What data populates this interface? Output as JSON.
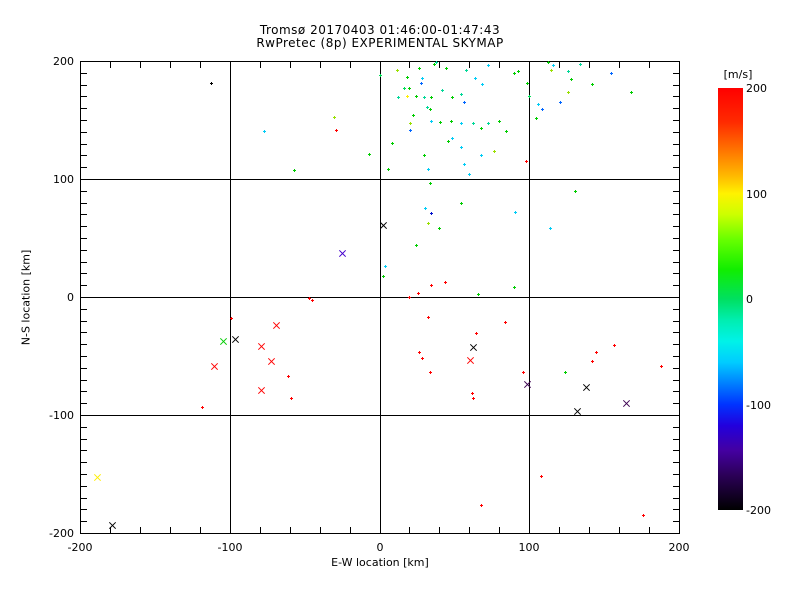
{
  "chart_data": {
    "type": "scatter",
    "title": "Tromsø 20170403 01:46:00-01:47:43",
    "subtitle": "RwPretec (8p) EXPERIMENTAL SKYMAP",
    "xlabel": "E-W location [km]",
    "ylabel": "N-S location [km]",
    "xlim": [
      -200,
      200
    ],
    "ylim": [
      -200,
      200
    ],
    "x_major_ticks": [
      -200,
      -100,
      0,
      100,
      200
    ],
    "y_major_ticks": [
      -200,
      -100,
      0,
      100,
      200
    ],
    "x_minor_step": 20,
    "y_minor_step": 10,
    "grid": true,
    "grid_values": [
      -100,
      0,
      100
    ],
    "marker_legend": {
      "d": "small plus dot",
      "x": "cross marker"
    },
    "colorbar": {
      "label": "[m/s]",
      "ticks": [
        200,
        100,
        0,
        -100,
        -200
      ],
      "range": [
        -200,
        200
      ],
      "stops": [
        [
          0.0,
          "#ff0000"
        ],
        [
          0.08,
          "#ff2a00"
        ],
        [
          0.15,
          "#ff7700"
        ],
        [
          0.21,
          "#ffbb00"
        ],
        [
          0.25,
          "#fff200"
        ],
        [
          0.3,
          "#ccff00"
        ],
        [
          0.36,
          "#66ff00"
        ],
        [
          0.43,
          "#11ee00"
        ],
        [
          0.5,
          "#00e060"
        ],
        [
          0.55,
          "#00eeb0"
        ],
        [
          0.6,
          "#00f2e8"
        ],
        [
          0.65,
          "#00ccff"
        ],
        [
          0.7,
          "#0080ff"
        ],
        [
          0.75,
          "#0033ff"
        ],
        [
          0.8,
          "#2200dd"
        ],
        [
          0.86,
          "#4400a0"
        ],
        [
          0.92,
          "#2a0055"
        ],
        [
          1.0,
          "#000000"
        ]
      ]
    },
    "palette": {
      "red": {
        "hex": "#ff0000",
        "v": 200
      },
      "yellow": {
        "hex": "#ffee00",
        "v": 105
      },
      "yellowgreen": {
        "hex": "#99e000",
        "v": 85
      },
      "green": {
        "hex": "#00cc00",
        "v": 45
      },
      "springgreen": {
        "hex": "#00dd55",
        "v": 15
      },
      "teal": {
        "hex": "#00d898",
        "v": -15
      },
      "cyan": {
        "hex": "#00ccf5",
        "v": -55
      },
      "blue": {
        "hex": "#0066ff",
        "v": -95
      },
      "darkblue": {
        "hex": "#0011cc",
        "v": -135
      },
      "indigo": {
        "hex": "#4400cc",
        "v": -150
      },
      "darkpurple": {
        "hex": "#3c0050",
        "v": -175
      },
      "black": {
        "hex": "#000000",
        "v": -200
      }
    },
    "points": [
      [
        -112,
        181,
        "black",
        "d"
      ],
      [
        -77,
        140,
        "cyan",
        "d"
      ],
      [
        -30,
        152,
        "yellowgreen",
        "d"
      ],
      [
        -29,
        141,
        "red",
        "d"
      ],
      [
        -7,
        121,
        "green",
        "d"
      ],
      [
        -57,
        107,
        "green",
        "d"
      ],
      [
        -25,
        37,
        "indigo",
        "x"
      ],
      [
        -47,
        -1,
        "red",
        "d"
      ],
      [
        1,
        188,
        "springgreen",
        "d"
      ],
      [
        12,
        192,
        "yellowgreen",
        "d"
      ],
      [
        27,
        194,
        "green",
        "d"
      ],
      [
        37,
        197,
        "green",
        "d"
      ],
      [
        38,
        199,
        "teal",
        "d"
      ],
      [
        45,
        194,
        "green",
        "d"
      ],
      [
        58,
        192,
        "teal",
        "d"
      ],
      [
        73,
        196,
        "cyan",
        "d"
      ],
      [
        93,
        191,
        "green",
        "d"
      ],
      [
        19,
        186,
        "green",
        "d"
      ],
      [
        29,
        185,
        "cyan",
        "d"
      ],
      [
        28,
        181,
        "blue",
        "d"
      ],
      [
        90,
        189,
        "green",
        "d"
      ],
      [
        99,
        181,
        "green",
        "d"
      ],
      [
        64,
        185,
        "cyan",
        "d"
      ],
      [
        69,
        180,
        "cyan",
        "d"
      ],
      [
        17,
        177,
        "springgreen",
        "d"
      ],
      [
        20,
        177,
        "green",
        "d"
      ],
      [
        13,
        169,
        "teal",
        "d"
      ],
      [
        19,
        170,
        "yellow",
        "d"
      ],
      [
        25,
        170,
        "green",
        "d"
      ],
      [
        30,
        169,
        "teal",
        "d"
      ],
      [
        35,
        169,
        "green",
        "d"
      ],
      [
        42,
        175,
        "teal",
        "d"
      ],
      [
        49,
        169,
        "green",
        "d"
      ],
      [
        55,
        172,
        "teal",
        "d"
      ],
      [
        57,
        165,
        "blue",
        "d"
      ],
      [
        32,
        161,
        "teal",
        "d"
      ],
      [
        34,
        159,
        "green",
        "d"
      ],
      [
        23,
        154,
        "green",
        "d"
      ],
      [
        113,
        199,
        "green",
        "d"
      ],
      [
        116,
        196,
        "cyan",
        "d"
      ],
      [
        115,
        192,
        "yellowgreen",
        "d"
      ],
      [
        134,
        197,
        "teal",
        "d"
      ],
      [
        126,
        191,
        "teal",
        "d"
      ],
      [
        128,
        184,
        "green",
        "d"
      ],
      [
        142,
        180,
        "green",
        "d"
      ],
      [
        155,
        189,
        "blue",
        "d"
      ],
      [
        168,
        173,
        "green",
        "d"
      ],
      [
        126,
        173,
        "yellowgreen",
        "d"
      ],
      [
        100,
        170,
        "springgreen",
        "d"
      ],
      [
        106,
        163,
        "cyan",
        "d"
      ],
      [
        121,
        165,
        "blue",
        "d"
      ],
      [
        109,
        159,
        "blue",
        "d"
      ],
      [
        105,
        151,
        "green",
        "d"
      ],
      [
        21,
        147,
        "yellowgreen",
        "d"
      ],
      [
        21,
        141,
        "blue",
        "d"
      ],
      [
        35,
        149,
        "cyan",
        "d"
      ],
      [
        41,
        148,
        "green",
        "d"
      ],
      [
        48,
        149,
        "green",
        "d"
      ],
      [
        55,
        147,
        "cyan",
        "d"
      ],
      [
        63,
        147,
        "teal",
        "d"
      ],
      [
        68,
        143,
        "green",
        "d"
      ],
      [
        73,
        147,
        "teal",
        "d"
      ],
      [
        80,
        149,
        "green",
        "d"
      ],
      [
        85,
        140,
        "green",
        "d"
      ],
      [
        9,
        130,
        "green",
        "d"
      ],
      [
        46,
        132,
        "green",
        "d"
      ],
      [
        49,
        134,
        "cyan",
        "d"
      ],
      [
        30,
        120,
        "green",
        "d"
      ],
      [
        55,
        127,
        "cyan",
        "d"
      ],
      [
        68,
        120,
        "cyan",
        "d"
      ],
      [
        77,
        123,
        "yellowgreen",
        "d"
      ],
      [
        98,
        115,
        "red",
        "d"
      ],
      [
        6,
        108,
        "green",
        "d"
      ],
      [
        33,
        108,
        "cyan",
        "d"
      ],
      [
        57,
        112,
        "cyan",
        "d"
      ],
      [
        60,
        104,
        "cyan",
        "d"
      ],
      [
        34,
        96,
        "green",
        "d"
      ],
      [
        31,
        75,
        "cyan",
        "d"
      ],
      [
        35,
        71,
        "darkblue",
        "d"
      ],
      [
        55,
        79,
        "green",
        "d"
      ],
      [
        3,
        61,
        "black",
        "x"
      ],
      [
        33,
        62,
        "yellowgreen",
        "d"
      ],
      [
        40,
        58,
        "green",
        "d"
      ],
      [
        91,
        72,
        "cyan",
        "d"
      ],
      [
        25,
        44,
        "green",
        "d"
      ],
      [
        4,
        26,
        "cyan",
        "d"
      ],
      [
        3,
        17,
        "green",
        "d"
      ],
      [
        35,
        10,
        "red",
        "d"
      ],
      [
        44,
        12,
        "red",
        "d"
      ],
      [
        20,
        0,
        "red",
        "d"
      ],
      [
        26,
        3,
        "red",
        "d"
      ],
      [
        66,
        2,
        "green",
        "d"
      ],
      [
        90,
        8,
        "green",
        "d"
      ],
      [
        131,
        89,
        "green",
        "d"
      ],
      [
        114,
        58,
        "cyan",
        "d"
      ],
      [
        -45,
        -3,
        "red",
        "d"
      ],
      [
        -99,
        -18,
        "red",
        "d"
      ],
      [
        -69,
        -24,
        "red",
        "x"
      ],
      [
        -104,
        -38,
        "green",
        "x"
      ],
      [
        -96,
        -36,
        "black",
        "x"
      ],
      [
        -79,
        -42,
        "red",
        "x"
      ],
      [
        -72,
        -55,
        "red",
        "x"
      ],
      [
        -110,
        -59,
        "red",
        "x"
      ],
      [
        -61,
        -67,
        "red",
        "d"
      ],
      [
        -79,
        -79,
        "red",
        "x"
      ],
      [
        -59,
        -86,
        "red",
        "d"
      ],
      [
        -118,
        -94,
        "red",
        "d"
      ],
      [
        33,
        -17,
        "red",
        "d"
      ],
      [
        84,
        -22,
        "red",
        "d"
      ],
      [
        65,
        -31,
        "red",
        "d"
      ],
      [
        63,
        -43,
        "black",
        "x"
      ],
      [
        27,
        -47,
        "red",
        "d"
      ],
      [
        29,
        -52,
        "red",
        "d"
      ],
      [
        61,
        -54,
        "red",
        "x"
      ],
      [
        34,
        -64,
        "red",
        "d"
      ],
      [
        96,
        -64,
        "red",
        "d"
      ],
      [
        99,
        -74,
        "darkpurple",
        "x"
      ],
      [
        62,
        -82,
        "red",
        "d"
      ],
      [
        63,
        -86,
        "red",
        "d"
      ],
      [
        124,
        -64,
        "green",
        "d"
      ],
      [
        145,
        -47,
        "red",
        "d"
      ],
      [
        142,
        -55,
        "red",
        "d"
      ],
      [
        157,
        -41,
        "red",
        "d"
      ],
      [
        138,
        -77,
        "black",
        "x"
      ],
      [
        165,
        -90,
        "darkpurple",
        "x"
      ],
      [
        132,
        -97,
        "black",
        "x"
      ],
      [
        188,
        -59,
        "red",
        "d"
      ],
      [
        -188,
        -153,
        "yellow",
        "x"
      ],
      [
        -178,
        -194,
        "black",
        "x"
      ],
      [
        108,
        -152,
        "red",
        "d"
      ],
      [
        68,
        -177,
        "red",
        "d"
      ],
      [
        176,
        -185,
        "red",
        "d"
      ]
    ]
  }
}
